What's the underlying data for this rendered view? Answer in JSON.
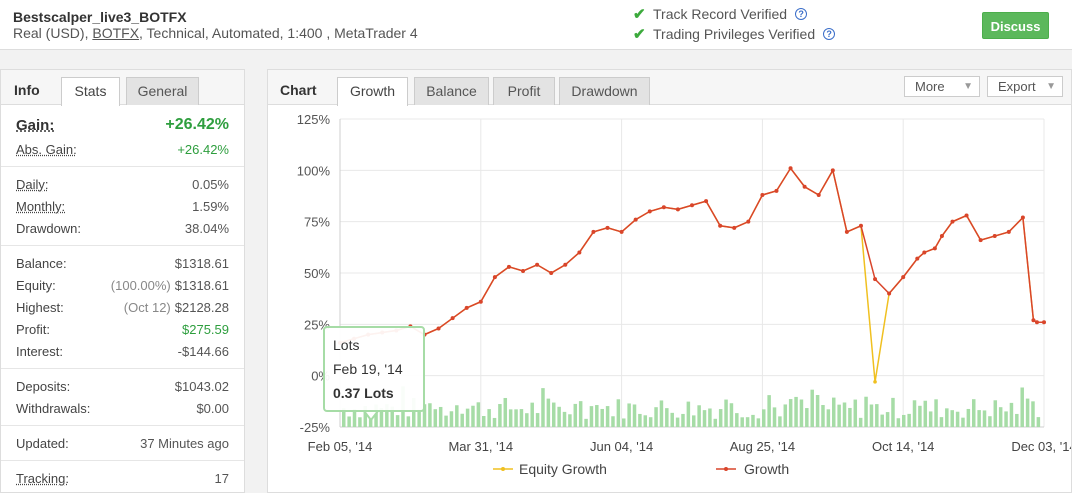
{
  "header": {
    "title": "Bestscalper_live3_BOTFX",
    "sub_before": "Real (USD),",
    "sub_link": "BOTFX",
    "sub_after": ", Technical, Automated, 1:400 , MetaTrader 4",
    "verify_1": "Track Record Verified",
    "verify_2": "Trading Privileges Verified",
    "discuss": "Discuss"
  },
  "left_tabs": {
    "title": "Info",
    "stats": "Stats",
    "general": "General"
  },
  "stats": {
    "gain_label": "Gain:",
    "gain": "+26.42%",
    "abs_gain_label": "Abs. Gain:",
    "abs_gain": "+26.42%",
    "daily_label": "Daily:",
    "daily": "0.05%",
    "monthly_label": "Monthly:",
    "monthly": "1.59%",
    "drawdown_label": "Drawdown:",
    "drawdown": "38.04%",
    "balance_label": "Balance:",
    "balance": "$1318.61",
    "equity_label": "Equity:",
    "equity_pre": "(100.00%)",
    "equity": "$1318.61",
    "highest_label": "Highest:",
    "highest_pre": "(Oct 12)",
    "highest": "$2128.28",
    "profit_label": "Profit:",
    "profit": "$275.59",
    "interest_label": "Interest:",
    "interest": "-$144.66",
    "deposits_label": "Deposits:",
    "deposits": "$1043.02",
    "withdrawals_label": "Withdrawals:",
    "withdrawals": "$0.00",
    "updated_label": "Updated:",
    "updated": "37 Minutes ago",
    "tracking_label": "Tracking:",
    "tracking": "17"
  },
  "chart_tabs": {
    "title": "Chart",
    "growth": "Growth",
    "balance": "Balance",
    "profit": "Profit",
    "drawdown": "Drawdown",
    "more": "More",
    "export": "Export"
  },
  "tooltip": {
    "title": "Lots",
    "date": "Feb 19, '14",
    "value": "0.37 Lots"
  },
  "colors": {
    "growth": "#d9452b",
    "equity": "#f0c020",
    "lots": "#a6dca6",
    "accent_green": "#2e9e3e",
    "button_green": "#5cb85c"
  },
  "chart_data": {
    "type": "line",
    "yticks": [
      "125%",
      "100%",
      "75%",
      "50%",
      "25%",
      "0%",
      "-25%"
    ],
    "ylim": [
      -25,
      125
    ],
    "xticks": [
      "Feb 05, '14",
      "Mar 31, '14",
      "Jun 04, '14",
      "Aug 25, '14",
      "Oct 14, '14",
      "Dec 03, '14"
    ],
    "grid": true,
    "legend_position": "bottom",
    "series": [
      {
        "name": "Growth",
        "x_frac": [
          0,
          0.02,
          0.04,
          0.06,
          0.08,
          0.1,
          0.12,
          0.14,
          0.16,
          0.18,
          0.2,
          0.22,
          0.24,
          0.26,
          0.28,
          0.3,
          0.32,
          0.34,
          0.36,
          0.38,
          0.4,
          0.42,
          0.44,
          0.46,
          0.48,
          0.5,
          0.52,
          0.54,
          0.56,
          0.58,
          0.6,
          0.62,
          0.64,
          0.66,
          0.68,
          0.7,
          0.72,
          0.74,
          0.76,
          0.78,
          0.8,
          0.82,
          0.83,
          0.845,
          0.855,
          0.87,
          0.89,
          0.91,
          0.93,
          0.95,
          0.97,
          0.985,
          0.99,
          1.0
        ],
        "values": [
          16,
          18,
          20,
          21,
          22,
          24,
          20,
          23,
          28,
          33,
          36,
          48,
          53,
          51,
          54,
          50,
          54,
          60,
          70,
          72,
          70,
          76,
          80,
          82,
          81,
          83,
          85,
          73,
          72,
          75,
          88,
          90,
          101,
          92,
          88,
          100,
          70,
          73,
          47,
          40,
          48,
          57,
          60,
          62,
          68,
          75,
          78,
          66,
          68,
          70,
          77,
          27,
          26,
          26
        ]
      },
      {
        "name": "Equity Growth",
        "values": [
          16,
          18,
          20,
          21,
          22,
          24,
          20,
          23,
          28,
          33,
          36,
          48,
          53,
          51,
          54,
          50,
          54,
          60,
          70,
          72,
          70,
          76,
          80,
          82,
          81,
          83,
          85,
          73,
          72,
          75,
          88,
          90,
          101,
          92,
          88,
          100,
          70,
          73,
          -3,
          40,
          48,
          57,
          60,
          62,
          68,
          75,
          78,
          66,
          68,
          70,
          77,
          27,
          26,
          26
        ]
      }
    ]
  }
}
